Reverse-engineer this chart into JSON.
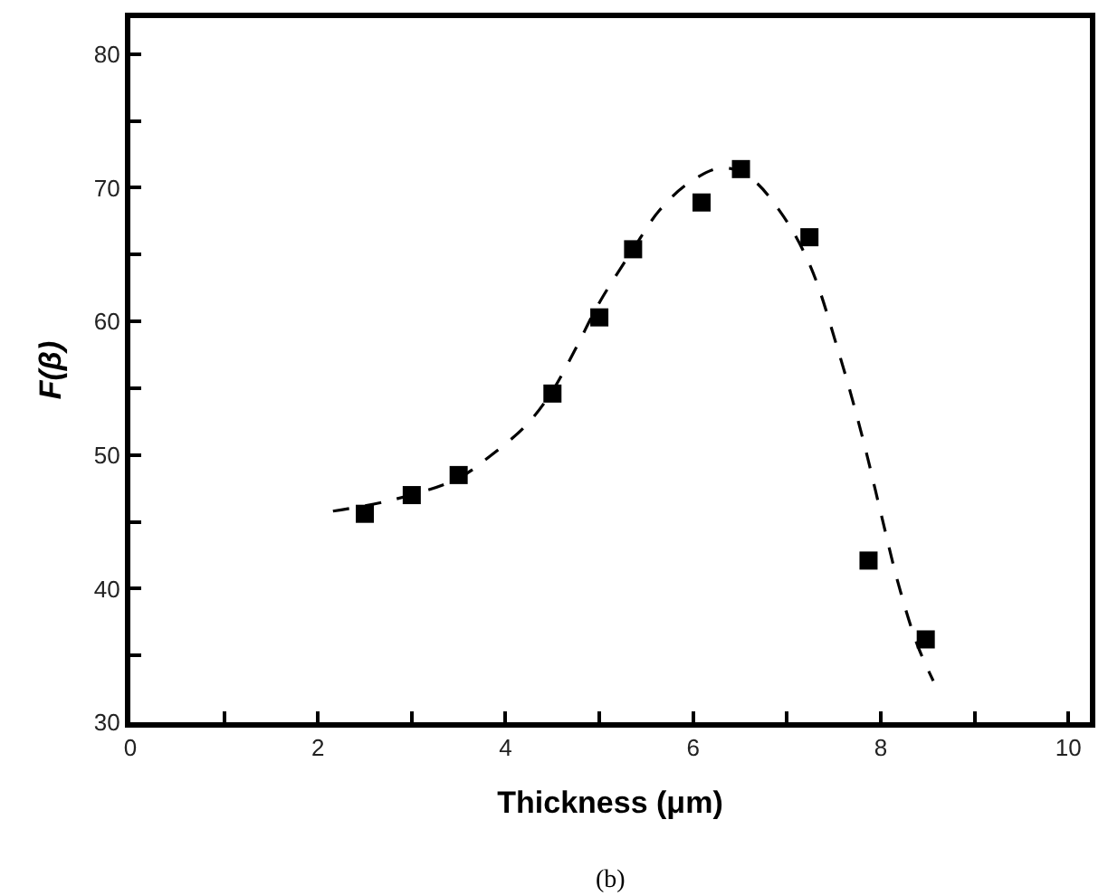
{
  "chart_data": {
    "type": "scatter",
    "xlabel": "Thickness (μm)",
    "ylabel": "F(β)",
    "annotations": [
      "(b)"
    ],
    "xlim": [
      0,
      10.23
    ],
    "ylim": [
      30,
      82.7
    ],
    "xticks": [
      0,
      {
        "value": 1,
        "label": null
      },
      2,
      {
        "value": 3,
        "label": null
      },
      4,
      {
        "value": 5,
        "label": null
      },
      6,
      {
        "value": 7,
        "label": null
      },
      8,
      {
        "value": 9,
        "label": null
      },
      10
    ],
    "yticks": [
      30,
      {
        "value": 35,
        "label": null
      },
      40,
      {
        "value": 45,
        "label": null
      },
      50,
      {
        "value": 55,
        "label": null
      },
      60,
      {
        "value": 65,
        "label": null
      },
      70,
      {
        "value": 75,
        "label": null
      },
      80
    ],
    "series": [
      {
        "marker": "square",
        "color": "#000000",
        "x": [
          2.5,
          3.0,
          3.5,
          4.5,
          5.0,
          5.36,
          6.09,
          6.51,
          7.24,
          7.87,
          8.48
        ],
        "values": [
          45.6,
          47.0,
          48.5,
          54.6,
          60.3,
          65.4,
          68.9,
          71.4,
          66.3,
          42.1,
          36.2
        ]
      },
      {
        "type": "line",
        "line_style": "dashed",
        "marker": "none",
        "color": "#000000",
        "x": [
          2.16,
          2.77,
          3.48,
          3.85,
          4.23,
          4.5,
          4.75,
          5.0,
          5.36,
          5.64,
          5.96,
          6.31,
          6.6,
          6.92,
          7.24,
          7.56,
          7.81,
          8.0,
          8.19,
          8.39,
          8.56
        ],
        "values": [
          45.8,
          46.6,
          48.2,
          50.0,
          52.3,
          54.8,
          58.0,
          61.4,
          65.4,
          68.3,
          70.4,
          71.5,
          70.8,
          68.3,
          64.3,
          57.5,
          51.2,
          45.7,
          40.3,
          35.8,
          33.1
        ]
      }
    ]
  }
}
